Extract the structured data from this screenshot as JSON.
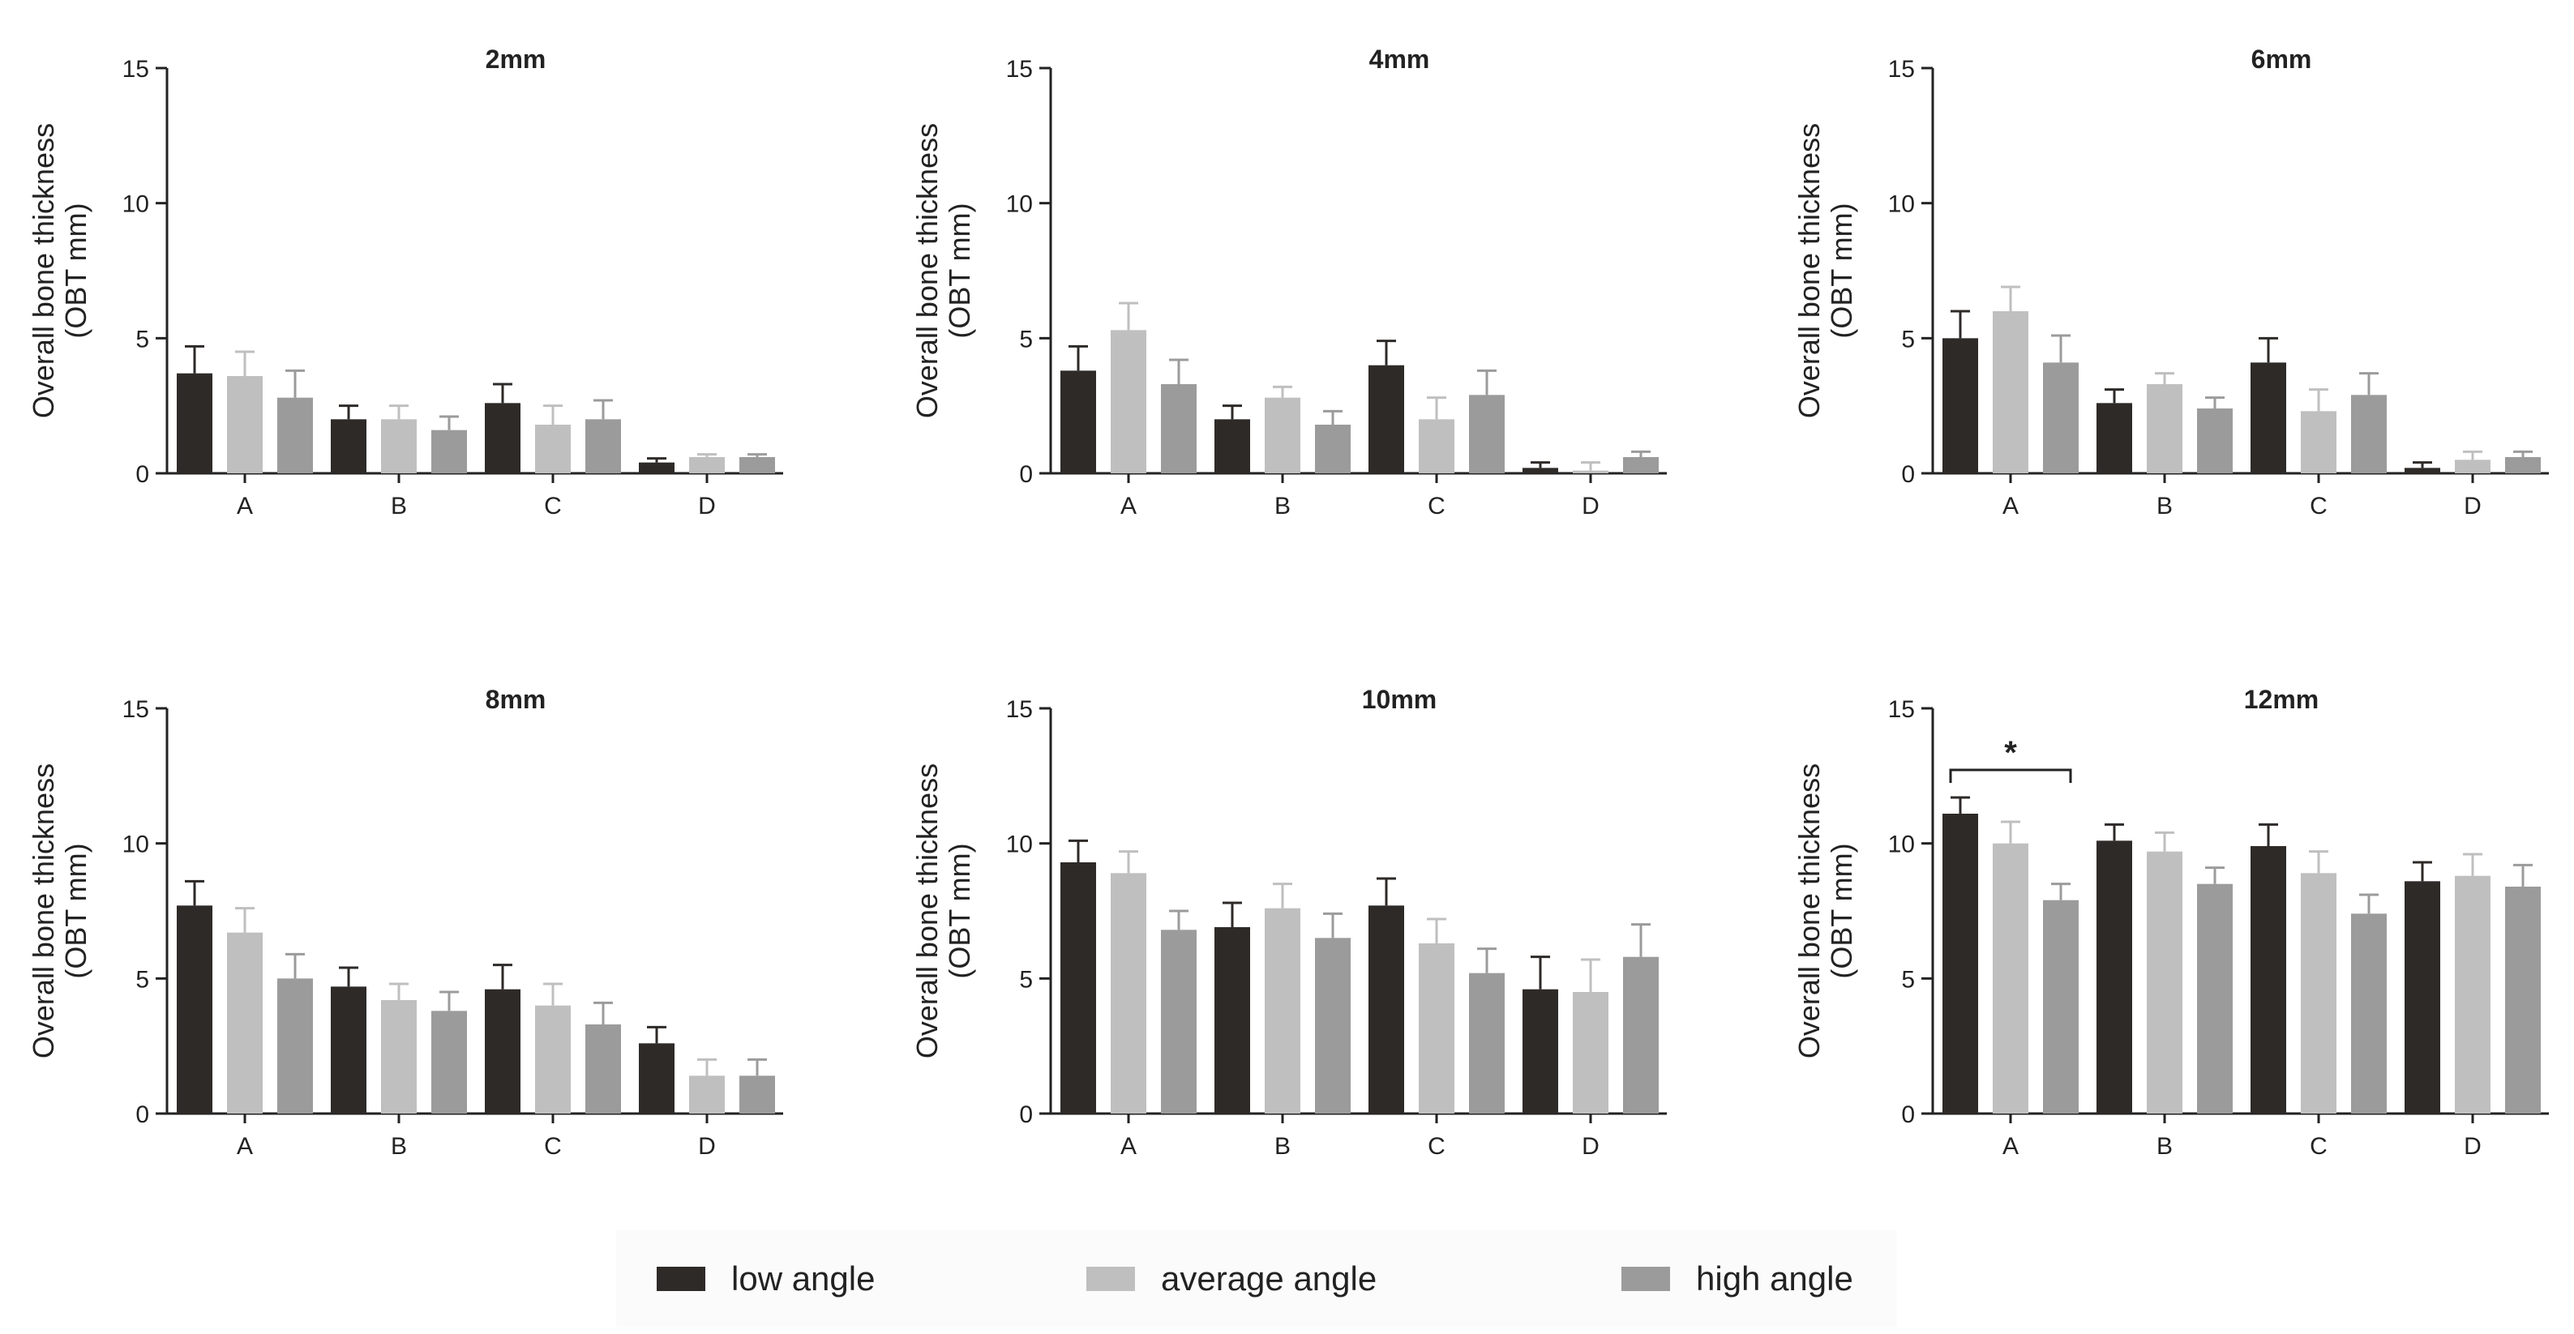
{
  "colors": {
    "low angle": "#2e2a28",
    "average angle": "#bfbfbf",
    "high angle": "#9b9b9b",
    "axis": "#222222"
  },
  "legend": {
    "items": [
      {
        "label": "low angle",
        "color_key": "low angle"
      },
      {
        "label": "average angle",
        "color_key": "average angle"
      },
      {
        "label": "high angle",
        "color_key": "high angle"
      }
    ]
  },
  "chart_data": [
    {
      "type": "bar",
      "title": "2mm",
      "xlabel": "",
      "ylabel": [
        "Overall bone thickness",
        "(OBT mm)"
      ],
      "ylim": [
        0,
        15
      ],
      "yticks": [
        0,
        5,
        10,
        15
      ],
      "categories": [
        "A",
        "B",
        "C",
        "D"
      ],
      "series": [
        {
          "name": "low angle",
          "values": [
            3.7,
            2.0,
            2.6,
            0.4
          ],
          "errors": [
            1.0,
            0.5,
            0.7,
            0.15
          ]
        },
        {
          "name": "average angle",
          "values": [
            3.6,
            2.0,
            1.8,
            0.6
          ],
          "errors": [
            0.9,
            0.5,
            0.7,
            0.1
          ]
        },
        {
          "name": "high angle",
          "values": [
            2.8,
            1.6,
            2.0,
            0.6
          ],
          "errors": [
            1.0,
            0.5,
            0.7,
            0.1
          ]
        }
      ]
    },
    {
      "type": "bar",
      "title": "4mm",
      "xlabel": "",
      "ylabel": [
        "Overall bone thickness",
        "(OBT mm)"
      ],
      "ylim": [
        0,
        15
      ],
      "yticks": [
        0,
        5,
        10,
        15
      ],
      "categories": [
        "A",
        "B",
        "C",
        "D"
      ],
      "series": [
        {
          "name": "low angle",
          "values": [
            3.8,
            2.0,
            4.0,
            0.2
          ],
          "errors": [
            0.9,
            0.5,
            0.9,
            0.2
          ]
        },
        {
          "name": "average angle",
          "values": [
            5.3,
            2.8,
            2.0,
            0.1
          ],
          "errors": [
            1.0,
            0.4,
            0.8,
            0.3
          ]
        },
        {
          "name": "high angle",
          "values": [
            3.3,
            1.8,
            2.9,
            0.6
          ],
          "errors": [
            0.9,
            0.5,
            0.9,
            0.2
          ]
        }
      ]
    },
    {
      "type": "bar",
      "title": "6mm",
      "xlabel": "",
      "ylabel": [
        "Overall bone thickness",
        "(OBT mm)"
      ],
      "ylim": [
        0,
        15
      ],
      "yticks": [
        0,
        5,
        10,
        15
      ],
      "categories": [
        "A",
        "B",
        "C",
        "D"
      ],
      "series": [
        {
          "name": "low angle",
          "values": [
            5.0,
            2.6,
            4.1,
            0.2
          ],
          "errors": [
            1.0,
            0.5,
            0.9,
            0.2
          ]
        },
        {
          "name": "average angle",
          "values": [
            6.0,
            3.3,
            2.3,
            0.5
          ],
          "errors": [
            0.9,
            0.4,
            0.8,
            0.3
          ]
        },
        {
          "name": "high angle",
          "values": [
            4.1,
            2.4,
            2.9,
            0.6
          ],
          "errors": [
            1.0,
            0.4,
            0.8,
            0.2
          ]
        }
      ]
    },
    {
      "type": "bar",
      "title": "8mm",
      "xlabel": "",
      "ylabel": [
        "Overall bone thickness",
        "(OBT mm)"
      ],
      "ylim": [
        0,
        15
      ],
      "yticks": [
        0,
        5,
        10,
        15
      ],
      "categories": [
        "A",
        "B",
        "C",
        "D"
      ],
      "series": [
        {
          "name": "low angle",
          "values": [
            7.7,
            4.7,
            4.6,
            2.6
          ],
          "errors": [
            0.9,
            0.7,
            0.9,
            0.6
          ]
        },
        {
          "name": "average angle",
          "values": [
            6.7,
            4.2,
            4.0,
            1.4
          ],
          "errors": [
            0.9,
            0.6,
            0.8,
            0.6
          ]
        },
        {
          "name": "high angle",
          "values": [
            5.0,
            3.8,
            3.3,
            1.4
          ],
          "errors": [
            0.9,
            0.7,
            0.8,
            0.6
          ]
        }
      ]
    },
    {
      "type": "bar",
      "title": "10mm",
      "xlabel": "",
      "ylabel": [
        "Overall bone thickness",
        "(OBT mm)"
      ],
      "ylim": [
        0,
        15
      ],
      "yticks": [
        0,
        5,
        10,
        15
      ],
      "categories": [
        "A",
        "B",
        "C",
        "D"
      ],
      "series": [
        {
          "name": "low angle",
          "values": [
            9.3,
            6.9,
            7.7,
            4.6
          ],
          "errors": [
            0.8,
            0.9,
            1.0,
            1.2
          ]
        },
        {
          "name": "average angle",
          "values": [
            8.9,
            7.6,
            6.3,
            4.5
          ],
          "errors": [
            0.8,
            0.9,
            0.9,
            1.2
          ]
        },
        {
          "name": "high angle",
          "values": [
            6.8,
            6.5,
            5.2,
            5.8
          ],
          "errors": [
            0.7,
            0.9,
            0.9,
            1.2
          ]
        }
      ]
    },
    {
      "type": "bar",
      "title": "12mm",
      "xlabel": "",
      "ylabel": [
        "Overall bone thickness",
        "(OBT mm)"
      ],
      "ylim": [
        0,
        15
      ],
      "yticks": [
        0,
        5,
        10,
        15
      ],
      "categories": [
        "A",
        "B",
        "C",
        "D"
      ],
      "series": [
        {
          "name": "low angle",
          "values": [
            11.1,
            10.1,
            9.9,
            8.6
          ],
          "errors": [
            0.6,
            0.6,
            0.8,
            0.7
          ]
        },
        {
          "name": "average angle",
          "values": [
            10.0,
            9.7,
            8.9,
            8.8
          ],
          "errors": [
            0.8,
            0.7,
            0.8,
            0.8
          ]
        },
        {
          "name": "high angle",
          "values": [
            7.9,
            8.5,
            7.4,
            8.4
          ],
          "errors": [
            0.6,
            0.6,
            0.7,
            0.8
          ]
        }
      ],
      "annotations": [
        {
          "text": "*",
          "category": "A",
          "between": [
            "low angle",
            "high angle"
          ]
        }
      ]
    }
  ]
}
